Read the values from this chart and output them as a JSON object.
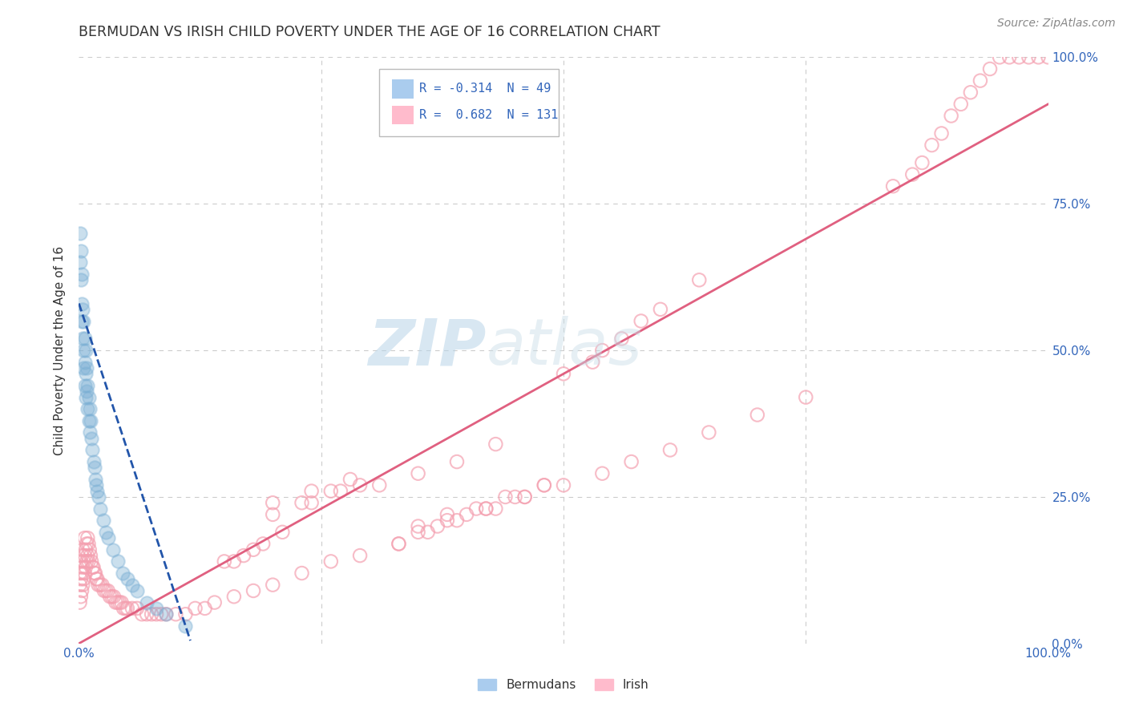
{
  "title": "BERMUDAN VS IRISH CHILD POVERTY UNDER THE AGE OF 16 CORRELATION CHART",
  "source": "Source: ZipAtlas.com",
  "ylabel": "Child Poverty Under the Age of 16",
  "watermark_zip": "ZIP",
  "watermark_atlas": "atlas",
  "xlim": [
    0.0,
    1.0
  ],
  "ylim": [
    0.0,
    1.0
  ],
  "legend_blue_r": "-0.314",
  "legend_blue_n": "49",
  "legend_pink_r": "0.682",
  "legend_pink_n": "131",
  "legend_label_blue": "Bermudans",
  "legend_label_pink": "Irish",
  "blue_color": "#7BAFD4",
  "pink_color": "#F4A0B0",
  "blue_edge_color": "#7BAFD4",
  "pink_edge_color": "#F4A0B0",
  "blue_line_color": "#2255AA",
  "pink_line_color": "#E06080",
  "title_color": "#333333",
  "axis_label_color": "#3366BB",
  "grid_color": "#CCCCCC",
  "background_color": "#FFFFFF",
  "blue_x": [
    0.001,
    0.001,
    0.002,
    0.002,
    0.003,
    0.003,
    0.003,
    0.004,
    0.004,
    0.005,
    0.005,
    0.005,
    0.006,
    0.006,
    0.006,
    0.007,
    0.007,
    0.007,
    0.008,
    0.008,
    0.009,
    0.009,
    0.01,
    0.01,
    0.011,
    0.011,
    0.012,
    0.013,
    0.014,
    0.015,
    0.016,
    0.017,
    0.018,
    0.019,
    0.02,
    0.022,
    0.025,
    0.028,
    0.03,
    0.035,
    0.04,
    0.045,
    0.05,
    0.055,
    0.06,
    0.07,
    0.08,
    0.09,
    0.11
  ],
  "blue_y": [
    0.7,
    0.65,
    0.67,
    0.62,
    0.63,
    0.58,
    0.55,
    0.57,
    0.52,
    0.55,
    0.5,
    0.47,
    0.52,
    0.48,
    0.44,
    0.5,
    0.46,
    0.42,
    0.47,
    0.43,
    0.44,
    0.4,
    0.42,
    0.38,
    0.4,
    0.36,
    0.38,
    0.35,
    0.33,
    0.31,
    0.3,
    0.28,
    0.27,
    0.26,
    0.25,
    0.23,
    0.21,
    0.19,
    0.18,
    0.16,
    0.14,
    0.12,
    0.11,
    0.1,
    0.09,
    0.07,
    0.06,
    0.05,
    0.03
  ],
  "pink_x": [
    0.001,
    0.001,
    0.001,
    0.002,
    0.002,
    0.002,
    0.003,
    0.003,
    0.003,
    0.004,
    0.004,
    0.004,
    0.005,
    0.005,
    0.006,
    0.006,
    0.006,
    0.007,
    0.007,
    0.008,
    0.008,
    0.009,
    0.009,
    0.01,
    0.01,
    0.011,
    0.012,
    0.013,
    0.014,
    0.015,
    0.016,
    0.017,
    0.018,
    0.019,
    0.02,
    0.022,
    0.024,
    0.026,
    0.028,
    0.03,
    0.032,
    0.034,
    0.036,
    0.038,
    0.04,
    0.042,
    0.044,
    0.046,
    0.048,
    0.05,
    0.055,
    0.06,
    0.065,
    0.07,
    0.075,
    0.08,
    0.085,
    0.09,
    0.1,
    0.11,
    0.12,
    0.13,
    0.14,
    0.16,
    0.18,
    0.2,
    0.23,
    0.26,
    0.29,
    0.33,
    0.36,
    0.39,
    0.43,
    0.46,
    0.5,
    0.54,
    0.57,
    0.35,
    0.38,
    0.41,
    0.44,
    0.48,
    0.35,
    0.37,
    0.4,
    0.42,
    0.45,
    0.48,
    0.84,
    0.86,
    0.87,
    0.88,
    0.89,
    0.9,
    0.91,
    0.92,
    0.93,
    0.94,
    0.95,
    0.96,
    0.97,
    0.98,
    0.99,
    1.0,
    0.38,
    0.42,
    0.46,
    0.33,
    0.61,
    0.65,
    0.7,
    0.75,
    0.2,
    0.24,
    0.28,
    0.2,
    0.23,
    0.26,
    0.29,
    0.24,
    0.27,
    0.31,
    0.35,
    0.39,
    0.43,
    0.15,
    0.17,
    0.19,
    0.21,
    0.16,
    0.18,
    0.53,
    0.56,
    0.6,
    0.64,
    0.5,
    0.54,
    0.58
  ],
  "pink_y": [
    0.07,
    0.1,
    0.12,
    0.08,
    0.11,
    0.14,
    0.09,
    0.12,
    0.15,
    0.1,
    0.13,
    0.16,
    0.11,
    0.14,
    0.12,
    0.15,
    0.18,
    0.13,
    0.16,
    0.14,
    0.17,
    0.15,
    0.18,
    0.14,
    0.17,
    0.16,
    0.15,
    0.14,
    0.13,
    0.13,
    0.12,
    0.12,
    0.11,
    0.11,
    0.1,
    0.1,
    0.1,
    0.09,
    0.09,
    0.09,
    0.08,
    0.08,
    0.08,
    0.07,
    0.07,
    0.07,
    0.07,
    0.06,
    0.06,
    0.06,
    0.06,
    0.06,
    0.05,
    0.05,
    0.05,
    0.05,
    0.05,
    0.05,
    0.05,
    0.05,
    0.06,
    0.06,
    0.07,
    0.08,
    0.09,
    0.1,
    0.12,
    0.14,
    0.15,
    0.17,
    0.19,
    0.21,
    0.23,
    0.25,
    0.27,
    0.29,
    0.31,
    0.2,
    0.22,
    0.23,
    0.25,
    0.27,
    0.19,
    0.2,
    0.22,
    0.23,
    0.25,
    0.27,
    0.78,
    0.8,
    0.82,
    0.85,
    0.87,
    0.9,
    0.92,
    0.94,
    0.96,
    0.98,
    1.0,
    1.0,
    1.0,
    1.0,
    1.0,
    1.0,
    0.21,
    0.23,
    0.25,
    0.17,
    0.33,
    0.36,
    0.39,
    0.42,
    0.24,
    0.26,
    0.28,
    0.22,
    0.24,
    0.26,
    0.27,
    0.24,
    0.26,
    0.27,
    0.29,
    0.31,
    0.34,
    0.14,
    0.15,
    0.17,
    0.19,
    0.14,
    0.16,
    0.48,
    0.52,
    0.57,
    0.62,
    0.46,
    0.5,
    0.55
  ],
  "blue_line_x0": 0.0,
  "blue_line_y0": 0.58,
  "blue_line_x1": 0.115,
  "blue_line_y1": 0.005,
  "pink_line_x0": 0.0,
  "pink_line_y0": 0.0,
  "pink_line_x1": 1.0,
  "pink_line_y1": 0.92
}
